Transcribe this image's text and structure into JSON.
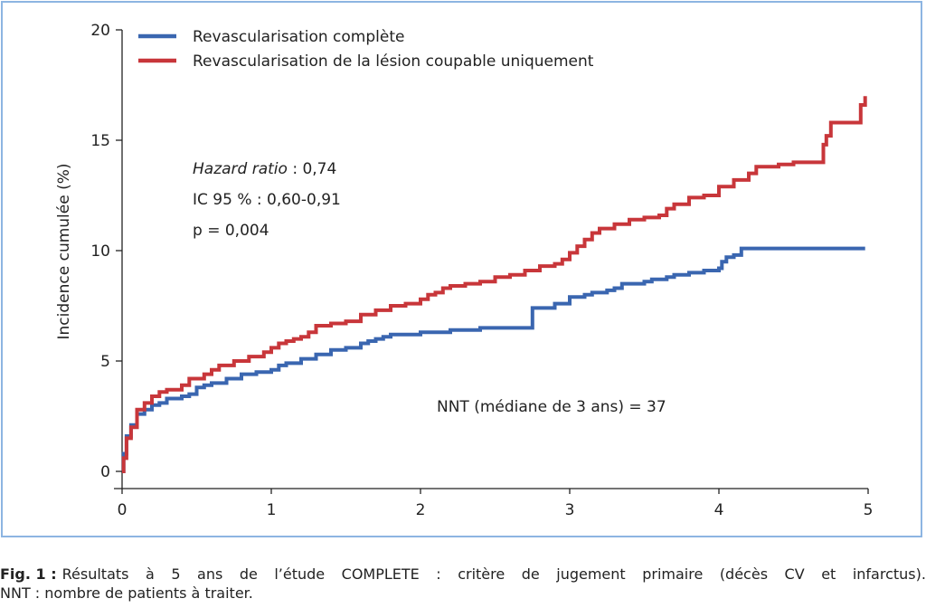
{
  "chart_data": {
    "type": "line",
    "xlim": [
      0,
      5
    ],
    "ylim": [
      0,
      20
    ],
    "x_ticks": [
      "0",
      "1",
      "2",
      "3",
      "4",
      "5"
    ],
    "y_ticks": [
      "0",
      "5",
      "10",
      "15",
      "20"
    ],
    "ylabel": "Incidence cumulée (%)",
    "xlabel": "",
    "legend_position": "top-left",
    "grid": false,
    "series": [
      {
        "name": "Revascularisation complète",
        "color": "#3a66b0",
        "x": [
          0,
          0.01,
          0.03,
          0.06,
          0.1,
          0.15,
          0.2,
          0.25,
          0.3,
          0.4,
          0.45,
          0.5,
          0.55,
          0.6,
          0.7,
          0.8,
          0.9,
          1.0,
          1.05,
          1.1,
          1.2,
          1.3,
          1.4,
          1.5,
          1.6,
          1.65,
          1.7,
          1.75,
          1.8,
          2.0,
          2.2,
          2.4,
          2.45,
          2.75,
          2.8,
          2.9,
          3.0,
          3.1,
          3.15,
          3.25,
          3.3,
          3.35,
          3.45,
          3.5,
          3.55,
          3.65,
          3.7,
          3.8,
          3.9,
          4.0,
          4.02,
          4.05,
          4.1,
          4.15,
          4.3,
          4.5,
          4.6,
          4.8,
          4.98
        ],
        "y": [
          0,
          0.8,
          1.6,
          2.1,
          2.6,
          2.8,
          3.0,
          3.1,
          3.3,
          3.4,
          3.5,
          3.8,
          3.9,
          4.0,
          4.2,
          4.4,
          4.5,
          4.6,
          4.8,
          4.9,
          5.1,
          5.3,
          5.5,
          5.6,
          5.8,
          5.9,
          6.0,
          6.1,
          6.2,
          6.3,
          6.4,
          6.5,
          6.5,
          7.4,
          7.4,
          7.6,
          7.9,
          8.0,
          8.1,
          8.2,
          8.3,
          8.5,
          8.5,
          8.6,
          8.7,
          8.8,
          8.9,
          9.0,
          9.1,
          9.2,
          9.5,
          9.7,
          9.8,
          10.1,
          10.1,
          10.1,
          10.1,
          10.1,
          10.1
        ]
      },
      {
        "name": "Revascularisation de la lésion coupable uniquement",
        "color": "#c8363a",
        "x": [
          0,
          0.01,
          0.03,
          0.06,
          0.1,
          0.15,
          0.2,
          0.25,
          0.3,
          0.4,
          0.45,
          0.55,
          0.6,
          0.65,
          0.75,
          0.85,
          0.95,
          1.0,
          1.05,
          1.1,
          1.15,
          1.2,
          1.25,
          1.3,
          1.4,
          1.5,
          1.6,
          1.7,
          1.8,
          1.9,
          2.0,
          2.05,
          2.1,
          2.15,
          2.2,
          2.3,
          2.4,
          2.5,
          2.6,
          2.7,
          2.8,
          2.9,
          2.95,
          3.0,
          3.05,
          3.1,
          3.15,
          3.2,
          3.3,
          3.4,
          3.5,
          3.6,
          3.65,
          3.7,
          3.8,
          3.9,
          4.0,
          4.1,
          4.2,
          4.25,
          4.4,
          4.5,
          4.7,
          4.72,
          4.75,
          4.95,
          4.98
        ],
        "y": [
          0,
          0.6,
          1.5,
          2.0,
          2.8,
          3.1,
          3.4,
          3.6,
          3.7,
          3.9,
          4.2,
          4.4,
          4.6,
          4.8,
          5.0,
          5.2,
          5.4,
          5.6,
          5.8,
          5.9,
          6.0,
          6.1,
          6.3,
          6.6,
          6.7,
          6.8,
          7.1,
          7.3,
          7.5,
          7.6,
          7.8,
          8.0,
          8.1,
          8.3,
          8.4,
          8.5,
          8.6,
          8.8,
          8.9,
          9.1,
          9.3,
          9.4,
          9.6,
          9.9,
          10.2,
          10.5,
          10.8,
          11.0,
          11.2,
          11.4,
          11.5,
          11.6,
          11.9,
          12.1,
          12.4,
          12.5,
          12.9,
          13.2,
          13.5,
          13.8,
          13.9,
          14.0,
          14.8,
          15.2,
          15.8,
          16.6,
          17.0
        ]
      }
    ],
    "annotations": {
      "hr_italic": "Hazard ratio",
      "hr_value": " : 0,74",
      "ci": "IC 95 % : 0,60-0,91",
      "p": "p = 0,004",
      "nnt": "NNT (médiane de 3 ans) = 37"
    }
  },
  "caption": {
    "label": "Fig. 1 :",
    "text_line1": "Résultats à 5 ans de l’étude COMPLETE : critère de jugement primaire (décès CV et infarctus).",
    "text_line2": "NNT : nombre de patients à traiter."
  }
}
